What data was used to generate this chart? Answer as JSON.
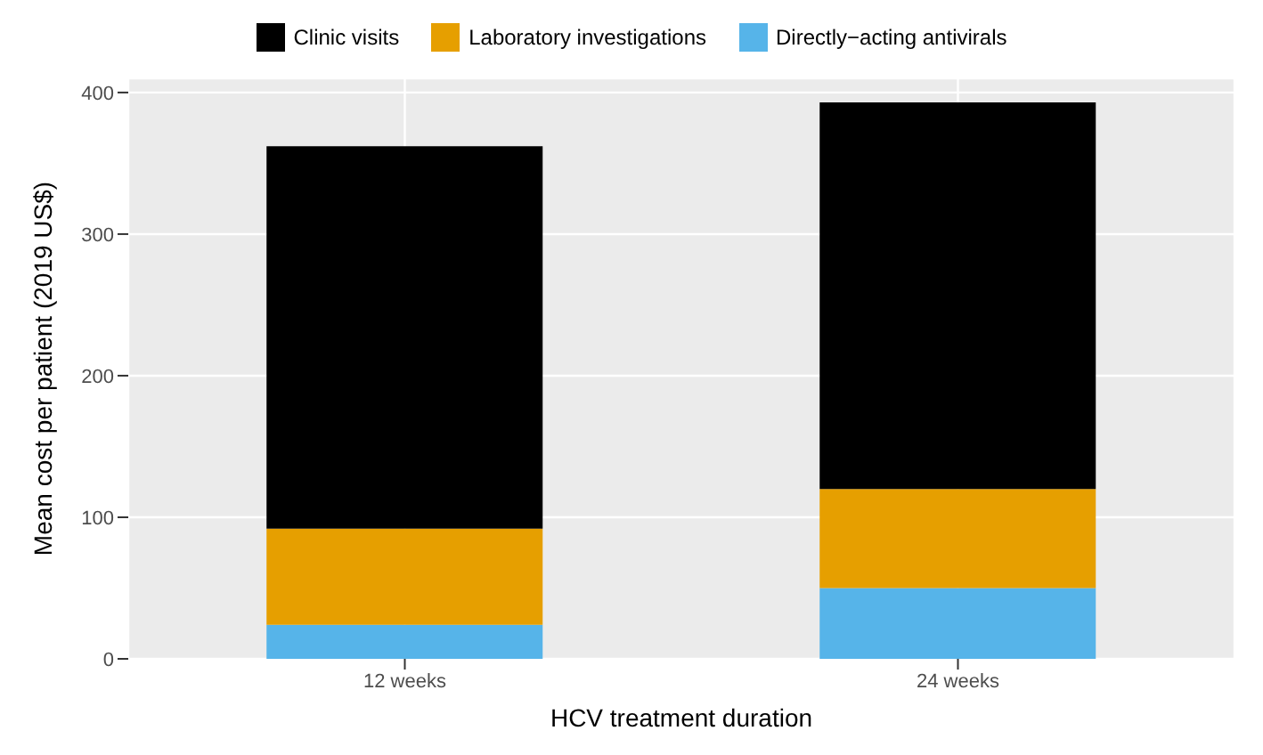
{
  "chart_data": {
    "type": "bar",
    "stacked": true,
    "xlabel": "HCV treatment duration",
    "ylabel": "Mean cost per patient (2019 US$)",
    "categories": [
      "12 weeks",
      "24 weeks"
    ],
    "series": [
      {
        "name": "Directly−acting antivirals",
        "color": "#56b4e9",
        "values": [
          24,
          50
        ]
      },
      {
        "name": "Laboratory investigations",
        "color": "#e69f00",
        "values": [
          68,
          70
        ]
      },
      {
        "name": "Clinic visits",
        "color": "#000000",
        "values": [
          270,
          273
        ]
      }
    ],
    "ylim": [
      0,
      410
    ],
    "yticks": [
      0,
      100,
      200,
      300,
      400
    ],
    "grid": true,
    "legend": "top"
  }
}
